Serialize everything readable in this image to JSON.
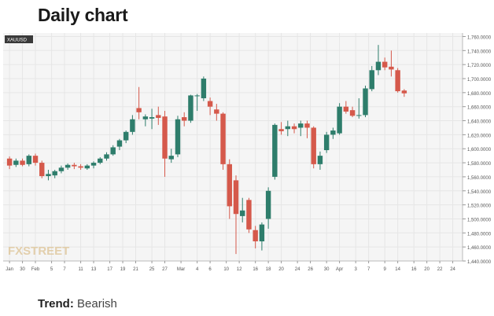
{
  "heading": "Daily chart",
  "trend": {
    "label": "Trend:",
    "value": "Bearish"
  },
  "chart_data": {
    "type": "candlestick",
    "symbol": "XAUUSD",
    "watermark": "FXSTREET",
    "ylim": [
      1440,
      1765
    ],
    "yticks": [
      1440,
      1460,
      1480,
      1500,
      1520,
      1540,
      1560,
      1580,
      1600,
      1620,
      1640,
      1660,
      1680,
      1700,
      1720,
      1740,
      1760
    ],
    "ytick_labels": [
      "1,440.0000",
      "1,460.0000",
      "1,480.0000",
      "1,500.0000",
      "1,520.0000",
      "1,540.0000",
      "1,560.0000",
      "1,580.0000",
      "1,600.0000",
      "1,620.0000",
      "1,640.0000",
      "1,660.0000",
      "1,680.0000",
      "1,700.0000",
      "1,720.0000",
      "1,740.0000",
      "1,760.0000"
    ],
    "xticks": [
      {
        "label": "Jan",
        "pos": 0.5
      },
      {
        "label": "30",
        "pos": 2.5
      },
      {
        "label": "Feb",
        "pos": 4.5
      },
      {
        "label": "5",
        "pos": 7
      },
      {
        "label": "7",
        "pos": 9
      },
      {
        "label": "11",
        "pos": 11.5
      },
      {
        "label": "13",
        "pos": 13.5
      },
      {
        "label": "17",
        "pos": 16
      },
      {
        "label": "19",
        "pos": 18
      },
      {
        "label": "21",
        "pos": 20
      },
      {
        "label": "25",
        "pos": 22.5
      },
      {
        "label": "27",
        "pos": 24.5
      },
      {
        "label": "Mar",
        "pos": 27
      },
      {
        "label": "4",
        "pos": 29.5
      },
      {
        "label": "6",
        "pos": 31.5
      },
      {
        "label": "10",
        "pos": 34
      },
      {
        "label": "12",
        "pos": 36
      },
      {
        "label": "16",
        "pos": 38.5
      },
      {
        "label": "18",
        "pos": 40.5
      },
      {
        "label": "20",
        "pos": 42.5
      },
      {
        "label": "24",
        "pos": 45
      },
      {
        "label": "26",
        "pos": 47
      },
      {
        "label": "30",
        "pos": 49.5
      },
      {
        "label": "Apr",
        "pos": 51.5
      },
      {
        "label": "3",
        "pos": 54
      },
      {
        "label": "7",
        "pos": 56
      },
      {
        "label": "9",
        "pos": 58.5
      },
      {
        "label": "14",
        "pos": 60.5
      },
      {
        "label": "16",
        "pos": 63
      },
      {
        "label": "20",
        "pos": 65
      },
      {
        "label": "22",
        "pos": 67
      },
      {
        "label": "24",
        "pos": 69
      }
    ],
    "colors": {
      "up": "#2e7d6b",
      "down": "#d5594b",
      "grid": "#e6e6e6",
      "bg": "#f5f5f5"
    },
    "candles": [
      {
        "o": 1586,
        "h": 1589,
        "l": 1571,
        "c": 1576
      },
      {
        "o": 1577,
        "h": 1586,
        "l": 1574,
        "c": 1583
      },
      {
        "o": 1583,
        "h": 1586,
        "l": 1575,
        "c": 1577
      },
      {
        "o": 1578,
        "h": 1592,
        "l": 1575,
        "c": 1590
      },
      {
        "o": 1590,
        "h": 1593,
        "l": 1576,
        "c": 1580
      },
      {
        "o": 1580,
        "h": 1583,
        "l": 1558,
        "c": 1561
      },
      {
        "o": 1561,
        "h": 1570,
        "l": 1555,
        "c": 1564
      },
      {
        "o": 1562,
        "h": 1570,
        "l": 1558,
        "c": 1568
      },
      {
        "o": 1568,
        "h": 1576,
        "l": 1565,
        "c": 1573
      },
      {
        "o": 1573,
        "h": 1579,
        "l": 1570,
        "c": 1577
      },
      {
        "o": 1577,
        "h": 1580,
        "l": 1571,
        "c": 1575
      },
      {
        "o": 1575,
        "h": 1578,
        "l": 1570,
        "c": 1573
      },
      {
        "o": 1572,
        "h": 1578,
        "l": 1570,
        "c": 1576
      },
      {
        "o": 1576,
        "h": 1582,
        "l": 1572,
        "c": 1580
      },
      {
        "o": 1580,
        "h": 1588,
        "l": 1578,
        "c": 1586
      },
      {
        "o": 1586,
        "h": 1595,
        "l": 1583,
        "c": 1592
      },
      {
        "o": 1592,
        "h": 1605,
        "l": 1590,
        "c": 1602
      },
      {
        "o": 1603,
        "h": 1614,
        "l": 1598,
        "c": 1612
      },
      {
        "o": 1612,
        "h": 1626,
        "l": 1608,
        "c": 1624
      },
      {
        "o": 1624,
        "h": 1648,
        "l": 1620,
        "c": 1642
      },
      {
        "o": 1658,
        "h": 1688,
        "l": 1642,
        "c": 1652
      },
      {
        "o": 1642,
        "h": 1649,
        "l": 1632,
        "c": 1646
      },
      {
        "o": 1643,
        "h": 1657,
        "l": 1628,
        "c": 1645
      },
      {
        "o": 1648,
        "h": 1660,
        "l": 1634,
        "c": 1644
      },
      {
        "o": 1646,
        "h": 1654,
        "l": 1560,
        "c": 1586
      },
      {
        "o": 1585,
        "h": 1600,
        "l": 1580,
        "c": 1590
      },
      {
        "o": 1592,
        "h": 1647,
        "l": 1588,
        "c": 1642
      },
      {
        "o": 1645,
        "h": 1652,
        "l": 1632,
        "c": 1640
      },
      {
        "o": 1640,
        "h": 1677,
        "l": 1637,
        "c": 1676
      },
      {
        "o": 1676,
        "h": 1678,
        "l": 1654,
        "c": 1676
      },
      {
        "o": 1672,
        "h": 1703,
        "l": 1668,
        "c": 1700
      },
      {
        "o": 1668,
        "h": 1673,
        "l": 1648,
        "c": 1660
      },
      {
        "o": 1656,
        "h": 1664,
        "l": 1640,
        "c": 1650
      },
      {
        "o": 1650,
        "h": 1652,
        "l": 1570,
        "c": 1578
      },
      {
        "o": 1578,
        "h": 1585,
        "l": 1500,
        "c": 1518
      },
      {
        "o": 1555,
        "h": 1562,
        "l": 1450,
        "c": 1507
      },
      {
        "o": 1504,
        "h": 1530,
        "l": 1495,
        "c": 1512
      },
      {
        "o": 1527,
        "h": 1530,
        "l": 1480,
        "c": 1485
      },
      {
        "o": 1484,
        "h": 1490,
        "l": 1458,
        "c": 1468
      },
      {
        "o": 1468,
        "h": 1495,
        "l": 1455,
        "c": 1492
      },
      {
        "o": 1500,
        "h": 1545,
        "l": 1486,
        "c": 1540
      },
      {
        "o": 1560,
        "h": 1636,
        "l": 1556,
        "c": 1634
      },
      {
        "o": 1628,
        "h": 1638,
        "l": 1620,
        "c": 1625
      },
      {
        "o": 1628,
        "h": 1640,
        "l": 1618,
        "c": 1632
      },
      {
        "o": 1632,
        "h": 1636,
        "l": 1622,
        "c": 1628
      },
      {
        "o": 1630,
        "h": 1640,
        "l": 1618,
        "c": 1636
      },
      {
        "o": 1636,
        "h": 1640,
        "l": 1615,
        "c": 1630
      },
      {
        "o": 1630,
        "h": 1632,
        "l": 1572,
        "c": 1578
      },
      {
        "o": 1578,
        "h": 1596,
        "l": 1570,
        "c": 1590
      },
      {
        "o": 1598,
        "h": 1624,
        "l": 1594,
        "c": 1620
      },
      {
        "o": 1620,
        "h": 1630,
        "l": 1614,
        "c": 1626
      },
      {
        "o": 1622,
        "h": 1665,
        "l": 1620,
        "c": 1660
      },
      {
        "o": 1660,
        "h": 1668,
        "l": 1650,
        "c": 1653
      },
      {
        "o": 1655,
        "h": 1660,
        "l": 1645,
        "c": 1647
      },
      {
        "o": 1647,
        "h": 1672,
        "l": 1643,
        "c": 1648
      },
      {
        "o": 1648,
        "h": 1690,
        "l": 1645,
        "c": 1686
      },
      {
        "o": 1685,
        "h": 1718,
        "l": 1682,
        "c": 1712
      },
      {
        "o": 1712,
        "h": 1748,
        "l": 1705,
        "c": 1724
      },
      {
        "o": 1724,
        "h": 1730,
        "l": 1712,
        "c": 1716
      },
      {
        "o": 1717,
        "h": 1740,
        "l": 1703,
        "c": 1713
      },
      {
        "o": 1712,
        "h": 1715,
        "l": 1680,
        "c": 1682
      },
      {
        "o": 1683,
        "h": 1685,
        "l": 1674,
        "c": 1679
      }
    ]
  }
}
